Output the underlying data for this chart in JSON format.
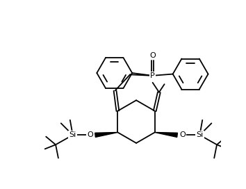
{
  "bg_color": "#ffffff",
  "line_color": "#000000",
  "lw": 1.3,
  "figsize": [
    3.54,
    2.72
  ],
  "dpi": 100,
  "xlim": [
    0,
    354
  ],
  "ylim": [
    0,
    272
  ]
}
